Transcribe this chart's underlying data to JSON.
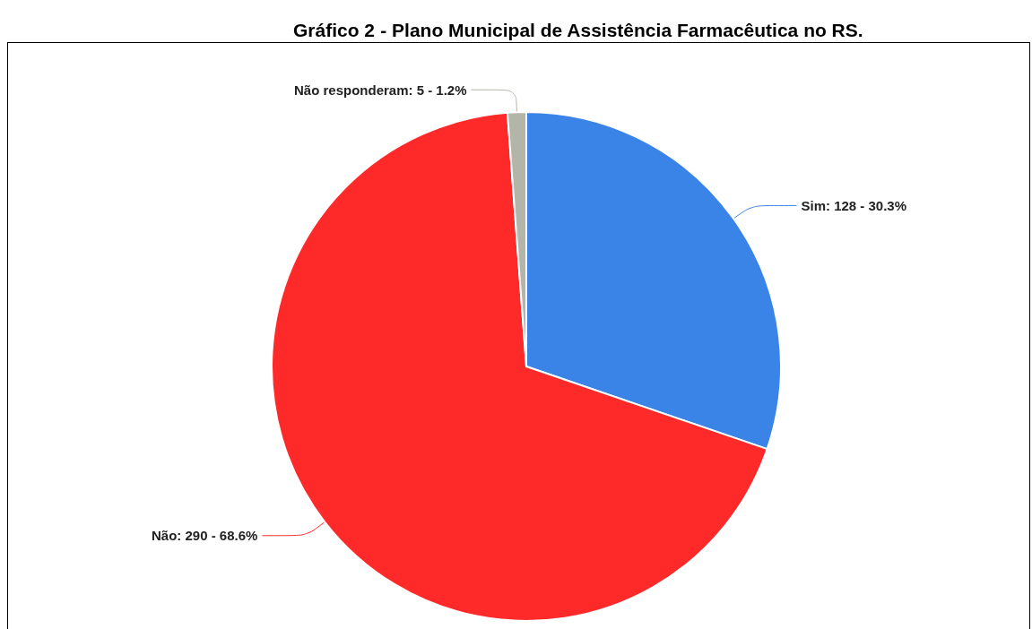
{
  "chart_data": {
    "type": "pie",
    "title": "Gráfico 2 - Plano Municipal de Assistência Farmacêutica no RS.",
    "categories": [
      "Sim",
      "Não",
      "Não responderam"
    ],
    "values": [
      128,
      290,
      5
    ],
    "colors": [
      "#3a84e8",
      "#fe2a2a",
      "#b3b5a8"
    ],
    "value_labels": [
      "128 - 30.3%",
      "290 - 68.6%",
      "5 - 1.2%"
    ],
    "legend": false
  }
}
